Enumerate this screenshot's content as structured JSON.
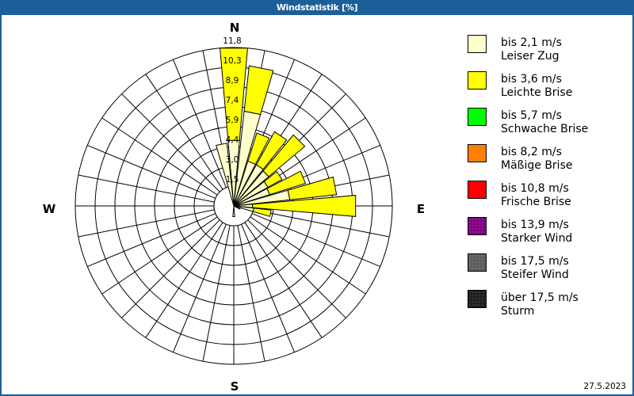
{
  "window": {
    "title": "Windstatistik [%]"
  },
  "compass": {
    "n": "N",
    "e": "E",
    "s": "S",
    "w": "W"
  },
  "legend": [
    {
      "color": "#ffffcc",
      "line1": "bis 2,1 m/s",
      "line2": "Leiser Zug"
    },
    {
      "color": "#ffff00",
      "line1": "bis 3,6 m/s",
      "line2": "Leichte Brise"
    },
    {
      "color": "#00ff00",
      "line1": "bis 5,7 m/s",
      "line2": "Schwache Brise"
    },
    {
      "color": "#ff8000",
      "line1": "bis 8,2 m/s",
      "line2": "Mäßige Brise"
    },
    {
      "color": "#ff0000",
      "line1": "bis 10,8 m/s",
      "line2": "Frische Brise"
    },
    {
      "color": "#800080",
      "line1": "bis 13,9 m/s",
      "line2": "Starker Wind"
    },
    {
      "color": "#5e5e5e",
      "line1": "bis 17,5 m/s",
      "line2": "Steifer Wind"
    },
    {
      "color": "#1e1e1e",
      "line1": "über 17,5 m/s",
      "line2": "Sturm"
    }
  ],
  "footer": {
    "date": "27.5.2023"
  },
  "chart_data": {
    "type": "bar",
    "polar": true,
    "stacked": true,
    "title": "Windstatistik [%]",
    "unit": "%",
    "direction_labels": {
      "0": "N",
      "90": "E",
      "180": "S",
      "270": "W"
    },
    "categories": [
      0,
      11.25,
      22.5,
      33.75,
      45,
      56.25,
      67.5,
      78.75,
      90,
      101.25,
      112.5,
      123.75,
      135,
      146.25,
      157.5,
      168.75,
      180,
      191.25,
      202.5,
      213.75,
      225,
      236.25,
      247.5,
      258.75,
      270,
      281.25,
      292.5,
      303.75,
      315,
      326.25,
      337.5,
      348.75
    ],
    "rmax": 11.8,
    "radial_ticks": [
      1.5,
      3.0,
      4.4,
      5.9,
      7.4,
      8.9,
      10.3,
      11.8
    ],
    "ring_labels": [
      "1,5",
      "3,0",
      "4,4",
      "5,9",
      "7,4",
      "8,9",
      "10,3",
      "11,8"
    ],
    "grid": true,
    "legend_position": "right",
    "series": [
      {
        "name": "Leiser Zug (bis 2,1 m/s)",
        "color": "#ffffcc",
        "values": [
          4.9,
          7.1,
          3.5,
          3.5,
          3.4,
          2.9,
          2.8,
          4.2,
          1.4,
          1.5,
          0.5,
          0,
          0,
          0,
          0,
          0,
          0.8,
          0,
          0,
          0,
          0,
          0,
          0,
          0,
          0,
          0,
          0,
          0,
          0,
          0,
          0,
          4.7
        ]
      },
      {
        "name": "Leichte Brise (bis 3,6 m/s)",
        "color": "#ffff00",
        "values": [
          6.9,
          3.4,
          2.2,
          2.8,
          3.5,
          1.2,
          2.8,
          3.5,
          7.7,
          1.3,
          0,
          0,
          0,
          0,
          0,
          0,
          0,
          0,
          0,
          0,
          0,
          0,
          0,
          0,
          0,
          0,
          0,
          0,
          0,
          0,
          0,
          0
        ]
      },
      {
        "name": "Schwache Brise (bis 5,7 m/s)",
        "color": "#00ff00",
        "values": [
          0,
          0,
          0,
          0,
          0,
          0,
          0,
          0,
          0,
          0,
          0,
          0,
          0,
          0,
          0,
          0,
          0,
          0,
          0,
          0,
          0,
          0,
          0,
          0,
          0,
          0,
          0,
          0,
          0,
          0,
          0,
          0
        ]
      },
      {
        "name": "Mäßige Brise (bis 8,2 m/s)",
        "color": "#ff8000",
        "values": [
          0,
          0,
          0,
          0,
          0,
          0,
          0,
          0,
          0,
          0,
          0,
          0,
          0,
          0,
          0,
          0,
          0,
          0,
          0,
          0,
          0,
          0,
          0,
          0,
          0,
          0,
          0,
          0,
          0,
          0,
          0,
          0
        ]
      },
      {
        "name": "Frische Brise (bis 10,8 m/s)",
        "color": "#ff0000",
        "values": [
          0,
          0,
          0,
          0,
          0,
          0,
          0,
          0,
          0,
          0,
          0,
          0,
          0,
          0,
          0,
          0,
          0,
          0,
          0,
          0,
          0,
          0,
          0,
          0,
          0,
          0,
          0,
          0,
          0,
          0,
          0,
          0
        ]
      },
      {
        "name": "Starker Wind (bis 13,9 m/s)",
        "color": "#800080",
        "values": [
          0,
          0,
          0,
          0,
          0,
          0,
          0,
          0,
          0,
          0,
          0,
          0,
          0,
          0,
          0,
          0,
          0,
          0,
          0,
          0,
          0,
          0,
          0,
          0,
          0,
          0,
          0,
          0,
          0,
          0,
          0,
          0
        ]
      },
      {
        "name": "Steifer Wind (bis 17,5 m/s)",
        "color": "#5e5e5e",
        "values": [
          0,
          0,
          0,
          0,
          0,
          0,
          0,
          0,
          0,
          0,
          0,
          0,
          0,
          0,
          0,
          0,
          0,
          0,
          0,
          0,
          0,
          0,
          0,
          0,
          0,
          0,
          0,
          0,
          0,
          0,
          0,
          0
        ]
      },
      {
        "name": "Sturm (über 17,5 m/s)",
        "color": "#1e1e1e",
        "values": [
          0,
          0,
          0,
          0,
          0,
          0,
          0,
          0,
          0,
          0,
          0,
          0,
          0,
          0,
          0,
          0,
          0,
          0,
          0,
          0,
          0,
          0,
          0,
          0,
          0,
          0,
          0,
          0,
          0,
          0,
          0,
          0
        ]
      }
    ]
  }
}
